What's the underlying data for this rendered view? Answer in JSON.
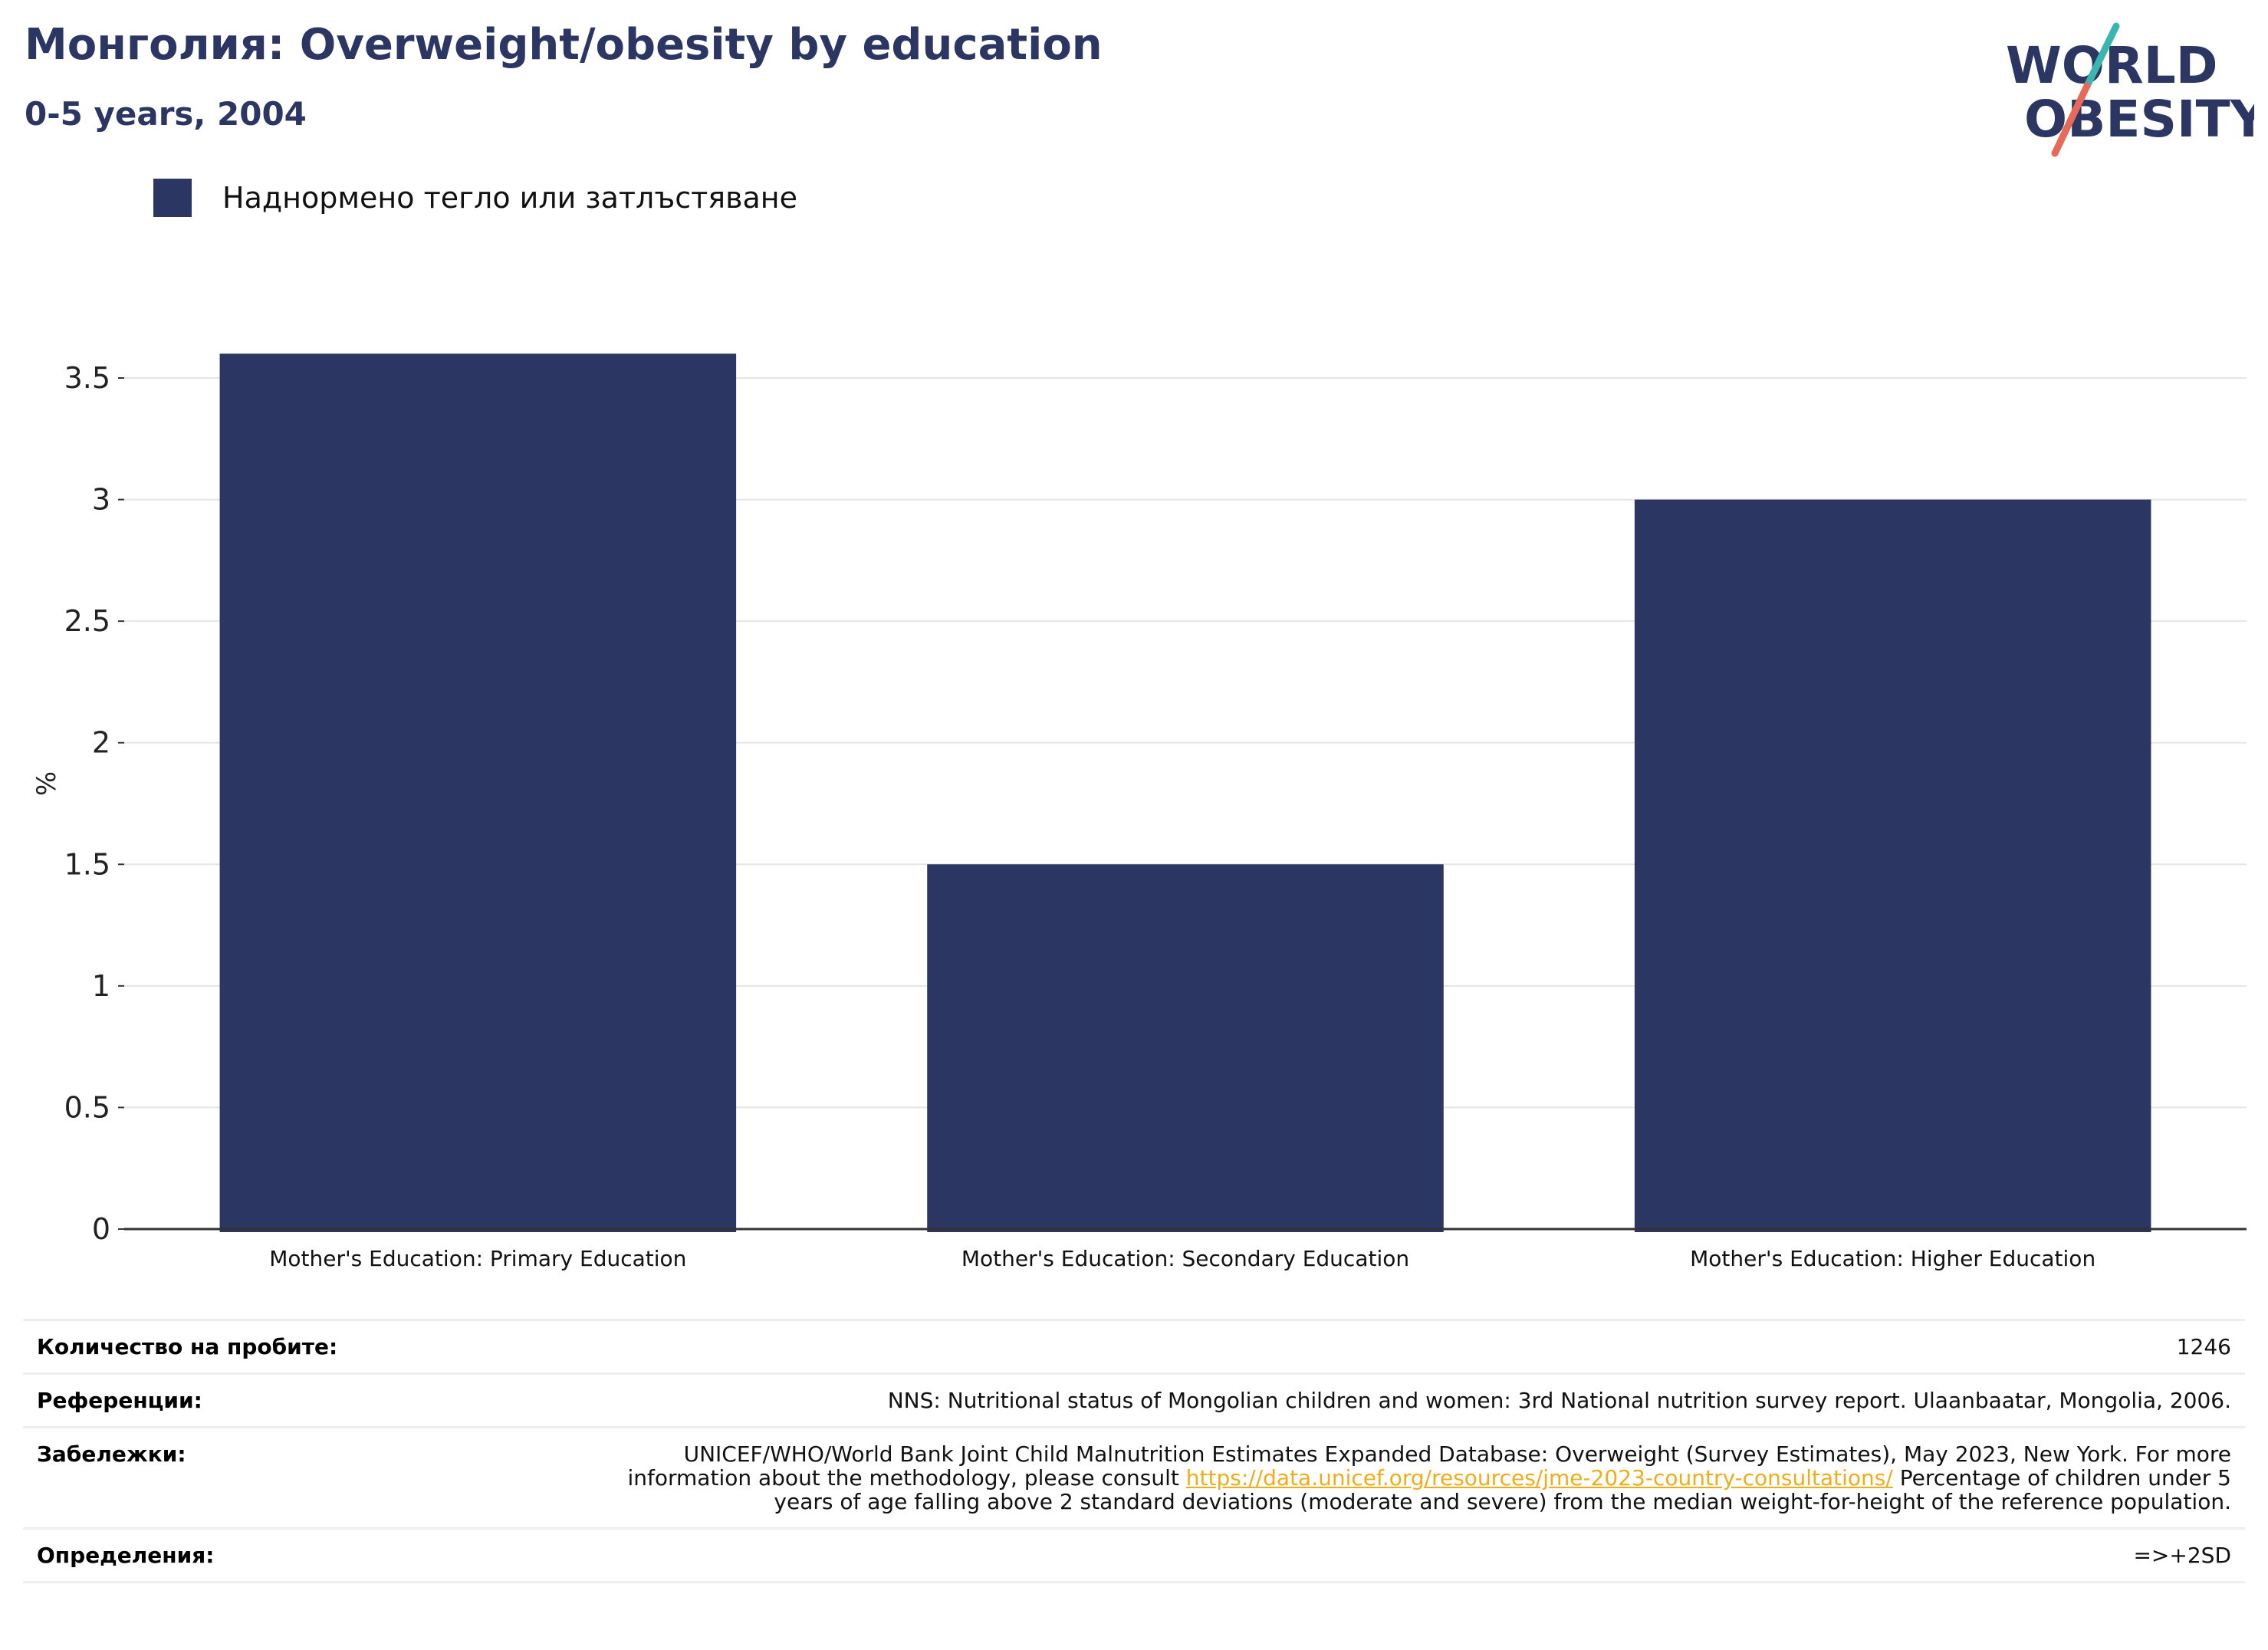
{
  "header": {
    "title": "Монголия: Overweight/obesity by education",
    "subtitle": "0-5 years, 2004"
  },
  "logo": {
    "line1": "WORLD",
    "line2": "OBESITY",
    "colors": {
      "text": "#2b3663",
      "slash_top": "#3ab5b0",
      "slash_bottom": "#e8685a"
    }
  },
  "colors": {
    "bar": "#2b3663",
    "grid": "#e6e6e6",
    "axis": "#333333"
  },
  "chart_data": {
    "type": "bar",
    "categories": [
      "Mother's Education: Primary Education",
      "Mother's Education: Secondary Education",
      "Mother's Education: Higher Education"
    ],
    "series": [
      {
        "name": "Наднормено тегло или затлъстяване",
        "values": [
          3.6,
          1.5,
          3.0
        ]
      }
    ],
    "ylabel": "%",
    "ylim": [
      0,
      3.7
    ],
    "yticks": [
      0,
      0.5,
      1,
      1.5,
      2,
      2.5,
      3,
      3.5
    ],
    "ytick_labels": [
      "0",
      "0.5",
      "1",
      "1.5",
      "2",
      "2.5",
      "3",
      "3.5"
    ],
    "grid": true,
    "legend_position": "top-left"
  },
  "info": {
    "sample_size": {
      "label": "Количество на пробите:",
      "value": "1246"
    },
    "references": {
      "label": "Референции:",
      "value": "NNS: Nutritional status of Mongolian children and women: 3rd National nutrition survey report. Ulaanbaatar, Mongolia, 2006."
    },
    "notes": {
      "label": "Забележки:",
      "text_before": "UNICEF/WHO/World Bank Joint Child Malnutrition Estimates Expanded Database: Overweight (Survey Estimates), May 2023, New York. For more information about the methodology, please consult ",
      "link": "https://data.unicef.org/resources/jme-2023-country-consultations/",
      "text_after": " Percentage of children under 5 years of age falling above 2 standard deviations (moderate and severe) from the median weight-for-height of the reference population."
    },
    "definitions": {
      "label": "Определения:",
      "value": "=>+2SD"
    }
  }
}
